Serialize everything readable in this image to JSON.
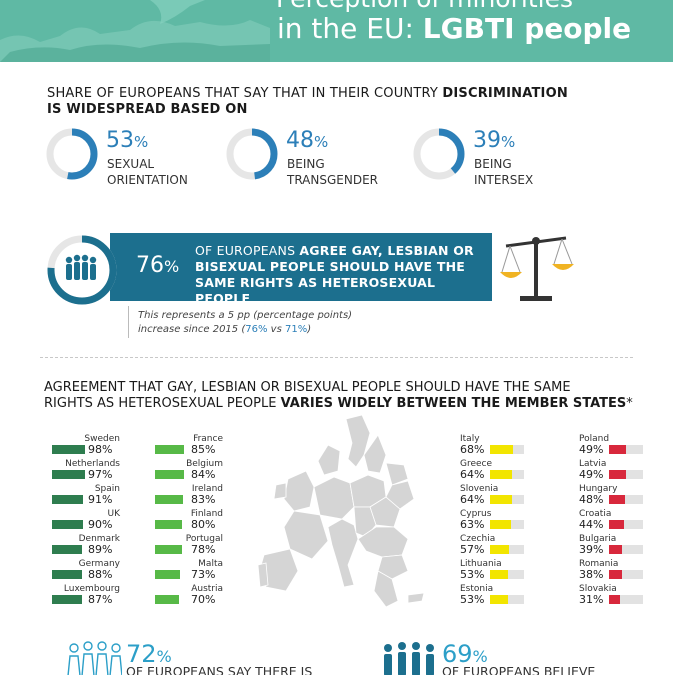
{
  "header": {
    "title_top": "Perception of minorities",
    "title_prefix": "in the EU: ",
    "title_bold": "LGBTI people",
    "bg_color": "#5fb9a4"
  },
  "section1": {
    "heading_normal": "SHARE OF EUROPEANS THAT SAY THAT IN THEIR COUNTRY ",
    "heading_bold": "DISCRIMINATION",
    "heading_line2": "IS WIDESPREAD BASED ON",
    "stats": [
      {
        "value": "53",
        "unit": "%",
        "line1": "SEXUAL",
        "line2": "ORIENTATION",
        "fraction": 0.53
      },
      {
        "value": "48",
        "unit": "%",
        "line1": "BEING",
        "line2": "TRANSGENDER",
        "fraction": 0.48
      },
      {
        "value": "39",
        "unit": "%",
        "line1": "BEING",
        "line2": "INTERSEX",
        "fraction": 0.39
      }
    ],
    "accent_color": "#2c7fb8"
  },
  "banner": {
    "value": "76",
    "unit": "%",
    "line1_normal": "OF EUROPEANS ",
    "line1_bold": "AGREE GAY, LESBIAN OR",
    "line2": "BISEXUAL PEOPLE SHOULD HAVE THE",
    "line3": "SAME RIGHTS AS HETEROSEXUAL PEOPLE",
    "bg_color": "#1c6f8e",
    "fraction": 0.76,
    "note_line1": "This represents a 5 pp (percentage points)",
    "note_line2_prefix": "increase since 2015 (",
    "note_new": "76%",
    "note_mid": " vs ",
    "note_old": "71%",
    "note_suffix": ")"
  },
  "section2": {
    "heading_line1": "AGREEMENT THAT GAY, LESBIAN OR BISEXUAL PEOPLE SHOULD HAVE THE SAME",
    "heading_line2_normal": "RIGHTS AS HETEROSEXUAL PEOPLE ",
    "heading_line2_bold": "VARIES WIDELY BETWEEN THE MEMBER STATES",
    "heading_asterisk": "*",
    "groups": [
      {
        "color": "#2e7d4f",
        "countries": [
          {
            "name": "Sweden",
            "value": 98
          },
          {
            "name": "Netherlands",
            "value": 97
          },
          {
            "name": "Spain",
            "value": 91
          },
          {
            "name": "UK",
            "value": 90
          },
          {
            "name": "Denmark",
            "value": 89
          },
          {
            "name": "Germany",
            "value": 88
          },
          {
            "name": "Luxembourg",
            "value": 87
          }
        ]
      },
      {
        "color": "#57b947",
        "countries": [
          {
            "name": "France",
            "value": 85
          },
          {
            "name": "Belgium",
            "value": 84
          },
          {
            "name": "Ireland",
            "value": 83
          },
          {
            "name": "Finland",
            "value": 80
          },
          {
            "name": "Portugal",
            "value": 78
          },
          {
            "name": "Malta",
            "value": 73
          },
          {
            "name": "Austria",
            "value": 70
          }
        ]
      },
      {
        "color": "#f2e500",
        "countries": [
          {
            "name": "Italy",
            "value": 68
          },
          {
            "name": "Greece",
            "value": 64
          },
          {
            "name": "Slovenia",
            "value": 64
          },
          {
            "name": "Cyprus",
            "value": 63
          },
          {
            "name": "Czechia",
            "value": 57
          },
          {
            "name": "Lithuania",
            "value": 53
          },
          {
            "name": "Estonia",
            "value": 53
          }
        ]
      },
      {
        "color": "#d8283c",
        "countries": [
          {
            "name": "Poland",
            "value": 49
          },
          {
            "name": "Latvia",
            "value": 49
          },
          {
            "name": "Hungary",
            "value": 48
          },
          {
            "name": "Croatia",
            "value": 44
          },
          {
            "name": "Bulgaria",
            "value": 39
          },
          {
            "name": "Romania",
            "value": 38
          },
          {
            "name": "Slovakia",
            "value": 31
          }
        ]
      }
    ]
  },
  "section3": {
    "left": {
      "value": "72",
      "unit": "%",
      "text": "OF EUROPEANS SAY THERE IS"
    },
    "right": {
      "value": "69",
      "unit": "%",
      "text": "OF EUROPEANS BELIEVE"
    }
  }
}
